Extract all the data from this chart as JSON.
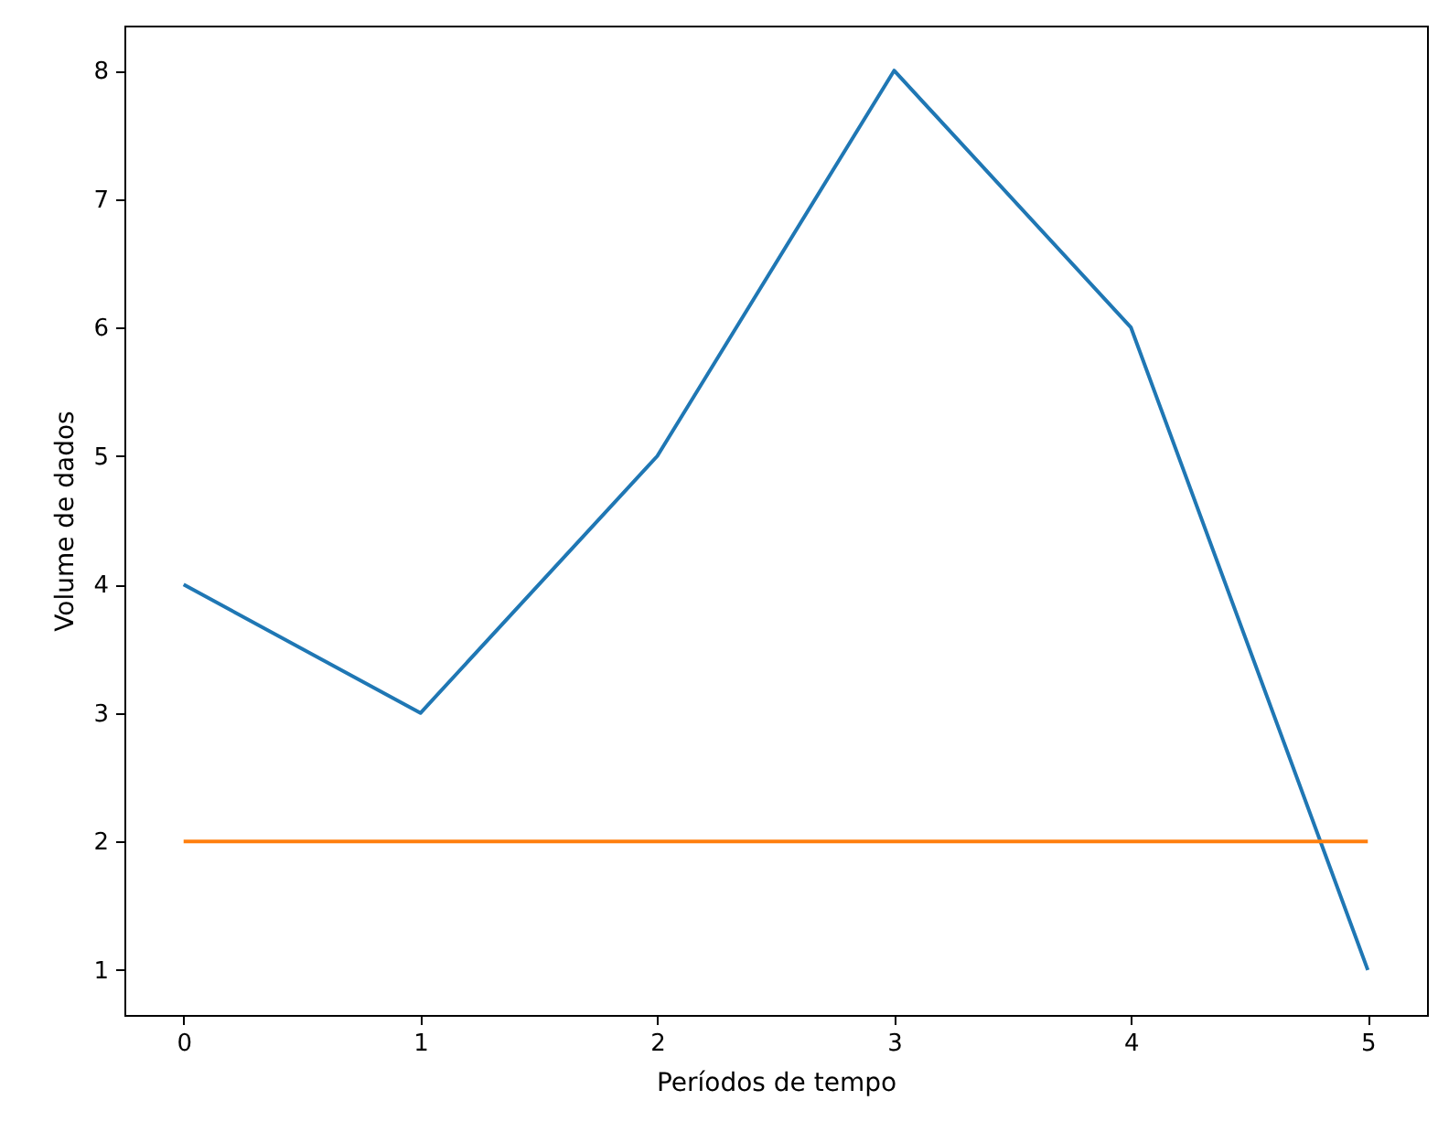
{
  "chart_data": {
    "type": "line",
    "xlabel": "Períodos de tempo",
    "ylabel": "Volume de dados",
    "x": [
      0,
      1,
      2,
      3,
      4,
      5
    ],
    "series": [
      {
        "color": "#1f77b4",
        "values": [
          4,
          3,
          5,
          8,
          6,
          1
        ]
      },
      {
        "color": "#ff7f0e",
        "values": [
          2,
          2,
          2,
          2,
          2,
          2
        ]
      }
    ],
    "xlim": [
      -0.25,
      5.25
    ],
    "xticks": [
      0,
      1,
      2,
      3,
      4,
      5
    ],
    "ylim": [
      0.65,
      8.35
    ],
    "yticks": [
      1,
      2,
      3,
      4,
      5,
      6,
      7,
      8
    ],
    "grid": false
  }
}
